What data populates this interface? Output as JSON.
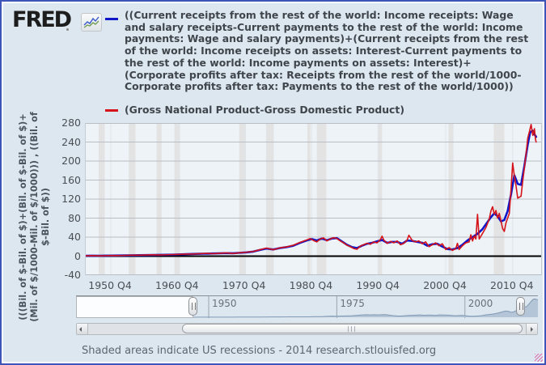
{
  "header": {
    "logo_text": "FRED",
    "legend": [
      {
        "color": "#0f16c9",
        "lines": [
          "((Current receipts from the rest of the world: Income receipts: Wage",
          "and salary receipts-Current payments to the rest of the world: Income",
          "payments: Wage and salary payments)+(Current receipts from the rest",
          "of the world: Income receipts on assets: Interest-Current payments to",
          "the rest of the world: Income payments on assets: Interest)+",
          "(Corporate profits after tax: Receipts from the rest of the world/1000-",
          "Corporate profits after tax: Payments to the rest of the world/1000))"
        ]
      },
      {
        "color": "#d5131a",
        "lines": [
          "(Gross National Product-Gross Domestic Product)"
        ]
      }
    ]
  },
  "footer": {
    "text": "Shaded areas indicate US recessions - 2014 research.stlouisfed.org"
  },
  "range_selector": {
    "labels": [
      {
        "x": 1950,
        "label": "1950"
      },
      {
        "x": 1975,
        "label": "1975"
      },
      {
        "x": 2000,
        "label": "2000"
      }
    ]
  },
  "chart_data": {
    "type": "line",
    "title": "",
    "xlabel": "",
    "ylabel_lines": [
      "(((Bil. of $-Bil. of $)+(Bil. of $-Bil. of $)+",
      "(Mil. of $/1000-Mil. of $/1000))) , ((Bil. of",
      "$-Bil. of $))"
    ],
    "x_range": [
      1947,
      2015
    ],
    "y_range": [
      -40,
      280
    ],
    "y_ticks": [
      280,
      240,
      200,
      160,
      120,
      80,
      40,
      0,
      -40
    ],
    "x_ticks": [
      {
        "x": 1950.75,
        "label": "1950 Q4"
      },
      {
        "x": 1960.75,
        "label": "1960 Q4"
      },
      {
        "x": 1970.75,
        "label": "1970 Q4"
      },
      {
        "x": 1980.75,
        "label": "1980 Q4"
      },
      {
        "x": 1990.75,
        "label": "1990 Q4"
      },
      {
        "x": 2000.75,
        "label": "2000 Q4"
      },
      {
        "x": 2010.75,
        "label": "2010 Q4"
      }
    ],
    "grid": true,
    "recessions": [
      [
        1948.92,
        1949.83
      ],
      [
        1953.42,
        1954.42
      ],
      [
        1957.58,
        1958.33
      ],
      [
        1960.25,
        1961.08
      ],
      [
        1969.92,
        1970.92
      ],
      [
        1973.92,
        1975.08
      ],
      [
        1980.08,
        1980.58
      ],
      [
        1981.5,
        1982.92
      ],
      [
        1990.58,
        1991.25
      ],
      [
        2001.17,
        2001.92
      ],
      [
        2007.92,
        2009.5
      ]
    ],
    "colors": {
      "plot_bg": "#eef3f8",
      "recession": "#e3e3e3",
      "hgrid": "#b9bec4",
      "vgrid": "#dfe5eb",
      "zero_line": "#000000",
      "mini_fill": "#b3c5d6",
      "mini_stroke": "#8099b3"
    },
    "series": [
      {
        "name": "((Current receipts from the rest of the world: Income receipts: Wage and salary receipts-Current payments to the rest of the world: Income payments: Wage and salary payments)+(Current receipts from the rest of the world: Income receipts on assets: Interest-Current payments to the rest of the world: Income payments on assets: Interest)+(Corporate profits after tax: Receipts from the rest of the world/1000-Corporate profits after tax: Payments to the rest of the world/1000))",
        "color": "#0f16c9",
        "width": 2.6,
        "points": [
          [
            1947,
            0.7
          ],
          [
            1948,
            1
          ],
          [
            1949,
            0.8
          ],
          [
            1950.75,
            1.2
          ],
          [
            1952,
            1.4
          ],
          [
            1954,
            1.8
          ],
          [
            1956,
            2.3
          ],
          [
            1958,
            2.6
          ],
          [
            1960,
            3.2
          ],
          [
            1962,
            4.1
          ],
          [
            1964,
            5
          ],
          [
            1966,
            5.6
          ],
          [
            1968,
            6.4
          ],
          [
            1969,
            6
          ],
          [
            1970,
            7
          ],
          [
            1971,
            8
          ],
          [
            1972,
            9.5
          ],
          [
            1973,
            13
          ],
          [
            1974,
            16
          ],
          [
            1975,
            14
          ],
          [
            1976,
            17
          ],
          [
            1977,
            19
          ],
          [
            1978,
            22
          ],
          [
            1979,
            28
          ],
          [
            1980,
            33
          ],
          [
            1980.75,
            36
          ],
          [
            1981.5,
            33
          ],
          [
            1982.25,
            37
          ],
          [
            1983,
            33.5
          ],
          [
            1983.75,
            37
          ],
          [
            1984.5,
            38
          ],
          [
            1985.25,
            31
          ],
          [
            1986,
            24
          ],
          [
            1986.75,
            19
          ],
          [
            1987.5,
            17
          ],
          [
            1988.25,
            22
          ],
          [
            1989,
            26
          ],
          [
            1989.75,
            28
          ],
          [
            1990.5,
            31
          ],
          [
            1991.25,
            34
          ],
          [
            1992,
            28
          ],
          [
            1992.75,
            30
          ],
          [
            1993.5,
            30
          ],
          [
            1994.25,
            26
          ],
          [
            1995,
            33
          ],
          [
            1995.75,
            32
          ],
          [
            1996.5,
            30
          ],
          [
            1997.25,
            28
          ],
          [
            1998,
            22
          ],
          [
            1998.75,
            25
          ],
          [
            1999.5,
            26
          ],
          [
            2000.25,
            20
          ],
          [
            2001,
            15
          ],
          [
            2001.75,
            14
          ],
          [
            2002.5,
            17
          ],
          [
            2003.25,
            24
          ],
          [
            2004,
            33
          ],
          [
            2004.75,
            40
          ],
          [
            2005.5,
            47
          ],
          [
            2006.25,
            57
          ],
          [
            2007,
            72
          ],
          [
            2007.5,
            82
          ],
          [
            2008,
            90
          ],
          [
            2008.5,
            84
          ],
          [
            2009,
            73
          ],
          [
            2009.5,
            76
          ],
          [
            2010,
            95
          ],
          [
            2010.5,
            130
          ],
          [
            2011,
            170
          ],
          [
            2011.5,
            152
          ],
          [
            2012,
            150
          ],
          [
            2012.5,
            190
          ],
          [
            2013,
            235
          ],
          [
            2013.35,
            260
          ],
          [
            2013.7,
            264
          ],
          [
            2014,
            256
          ],
          [
            2014.25,
            251
          ]
        ]
      },
      {
        "name": "(Gross National Product-Gross Domestic Product)",
        "color": "#d5131a",
        "width": 1.6,
        "points": [
          [
            1947,
            0.5
          ],
          [
            1948,
            1.2
          ],
          [
            1949,
            0.6
          ],
          [
            1950.75,
            1.4
          ],
          [
            1952,
            1.2
          ],
          [
            1953,
            1.7
          ],
          [
            1954,
            2
          ],
          [
            1955,
            2.1
          ],
          [
            1956,
            2.5
          ],
          [
            1957,
            2.9
          ],
          [
            1958,
            2.5
          ],
          [
            1959,
            3
          ],
          [
            1960,
            3.4
          ],
          [
            1961,
            3.8
          ],
          [
            1962,
            4.3
          ],
          [
            1963,
            4.6
          ],
          [
            1964,
            5.2
          ],
          [
            1965,
            5.9
          ],
          [
            1966,
            5.3
          ],
          [
            1967,
            6
          ],
          [
            1968,
            6.9
          ],
          [
            1969,
            5.7
          ],
          [
            1970,
            7.2
          ],
          [
            1971,
            8.3
          ],
          [
            1972,
            9.8
          ],
          [
            1973,
            13.5
          ],
          [
            1974,
            17
          ],
          [
            1975,
            13.5
          ],
          [
            1976,
            17.5
          ],
          [
            1977,
            19.5
          ],
          [
            1978,
            23
          ],
          [
            1979,
            29
          ],
          [
            1980,
            34
          ],
          [
            1980.5,
            37
          ],
          [
            1981,
            33
          ],
          [
            1981.5,
            30
          ],
          [
            1982,
            36
          ],
          [
            1982.5,
            38.5
          ],
          [
            1983,
            32
          ],
          [
            1983.5,
            36
          ],
          [
            1984,
            39
          ],
          [
            1984.5,
            37
          ],
          [
            1985,
            32
          ],
          [
            1985.5,
            28
          ],
          [
            1986,
            23
          ],
          [
            1986.5,
            20
          ],
          [
            1987,
            16
          ],
          [
            1987.5,
            14.5
          ],
          [
            1988,
            21
          ],
          [
            1988.5,
            24
          ],
          [
            1989,
            27
          ],
          [
            1989.5,
            25
          ],
          [
            1990,
            30
          ],
          [
            1990.5,
            28
          ],
          [
            1991,
            35
          ],
          [
            1991.25,
            42
          ],
          [
            1991.5,
            34
          ],
          [
            1992,
            27
          ],
          [
            1992.5,
            31
          ],
          [
            1993,
            28
          ],
          [
            1993.5,
            32
          ],
          [
            1994,
            24
          ],
          [
            1994.5,
            27
          ],
          [
            1995,
            34
          ],
          [
            1995.25,
            44
          ],
          [
            1995.75,
            33
          ],
          [
            1996.25,
            30
          ],
          [
            1996.75,
            32
          ],
          [
            1997.25,
            26
          ],
          [
            1997.75,
            30
          ],
          [
            1998.25,
            20
          ],
          [
            1998.75,
            24
          ],
          [
            1999.25,
            28
          ],
          [
            1999.75,
            22
          ],
          [
            2000.25,
            26
          ],
          [
            2000.75,
            14
          ],
          [
            2001.25,
            18
          ],
          [
            2001.75,
            12
          ],
          [
            2002.25,
            16
          ],
          [
            2002.5,
            27
          ],
          [
            2002.75,
            14
          ],
          [
            2003.25,
            22
          ],
          [
            2003.75,
            28
          ],
          [
            2004.25,
            30
          ],
          [
            2004.5,
            45
          ],
          [
            2004.75,
            32
          ],
          [
            2005,
            42
          ],
          [
            2005.25,
            36
          ],
          [
            2005.5,
            88
          ],
          [
            2005.75,
            36
          ],
          [
            2006.25,
            48
          ],
          [
            2006.75,
            60
          ],
          [
            2007.25,
            78
          ],
          [
            2007.5,
            95
          ],
          [
            2007.75,
            104
          ],
          [
            2008,
            88
          ],
          [
            2008.25,
            96
          ],
          [
            2008.5,
            80
          ],
          [
            2008.75,
            90
          ],
          [
            2009.25,
            58
          ],
          [
            2009.5,
            52
          ],
          [
            2009.75,
            70
          ],
          [
            2010.25,
            90
          ],
          [
            2010.5,
            140
          ],
          [
            2010.75,
            196
          ],
          [
            2011,
            168
          ],
          [
            2011.25,
            148
          ],
          [
            2011.5,
            122
          ],
          [
            2012,
            126
          ],
          [
            2012.25,
            158
          ],
          [
            2012.5,
            186
          ],
          [
            2012.75,
            215
          ],
          [
            2013,
            248
          ],
          [
            2013.25,
            262
          ],
          [
            2013.5,
            277
          ],
          [
            2013.75,
            254
          ],
          [
            2014,
            268
          ],
          [
            2014.15,
            246
          ],
          [
            2014.25,
            240
          ]
        ]
      }
    ]
  }
}
